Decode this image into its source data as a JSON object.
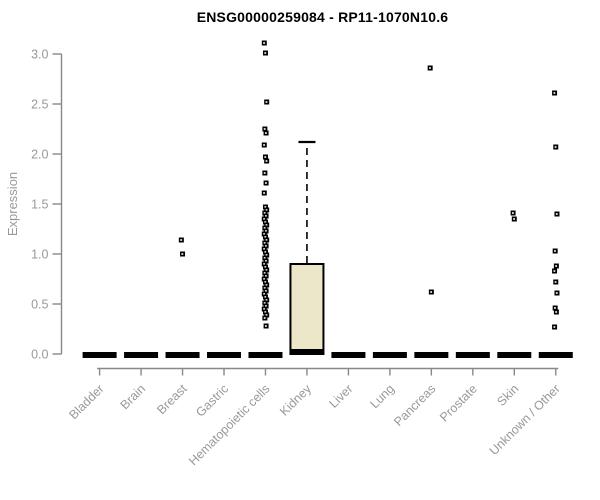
{
  "chart_data": {
    "type": "boxplot",
    "title": "ENSG00000259084 - RP11-1070N10.6",
    "ylabel": "Expression",
    "xlabel": "",
    "ylim": [
      0.0,
      3.0
    ],
    "yticks": [
      0.0,
      0.5,
      1.0,
      1.5,
      2.0,
      2.5,
      3.0
    ],
    "grid": "off",
    "legend": "none",
    "categories": [
      "Bladder",
      "Brain",
      "Breast",
      "Gastric",
      "Hematopoietic cells",
      "Kidney",
      "Liver",
      "Lung",
      "Pancreas",
      "Prostate",
      "Skin",
      "Unknown / Other"
    ],
    "colors": {
      "box_fill": "#ece7c8",
      "box_border": "#000000",
      "median": "#000000",
      "outlier": "#000000",
      "axis_line": "#888888",
      "axis_text": "#999999",
      "title_text": "#000000"
    },
    "boxes": [
      {
        "category": "Bladder",
        "q1": 0,
        "median": 0,
        "q3": 0,
        "whisker_low": 0,
        "whisker_high": 0,
        "outliers": []
      },
      {
        "category": "Brain",
        "q1": 0,
        "median": 0,
        "q3": 0,
        "whisker_low": 0,
        "whisker_high": 0,
        "outliers": []
      },
      {
        "category": "Breast",
        "q1": 0,
        "median": 0,
        "q3": 0,
        "whisker_low": 0,
        "whisker_high": 0,
        "outliers": [
          1.14,
          1.0
        ]
      },
      {
        "category": "Gastric",
        "q1": 0,
        "median": 0,
        "q3": 0,
        "whisker_low": 0,
        "whisker_high": 0,
        "outliers": []
      },
      {
        "category": "Hematopoietic cells",
        "q1": 0,
        "median": 0,
        "q3": 0,
        "whisker_low": 0,
        "whisker_high": 0,
        "outliers": [
          3.11,
          3.01,
          2.52,
          2.25,
          2.21,
          2.09,
          1.97,
          1.93,
          1.81,
          1.71,
          1.61,
          1.47,
          1.44,
          1.41,
          1.38,
          1.35,
          1.32,
          1.29,
          1.26,
          1.23,
          1.2,
          1.17,
          1.14,
          1.11,
          1.08,
          1.05,
          1.02,
          0.99,
          0.96,
          0.93,
          0.9,
          0.87,
          0.84,
          0.81,
          0.78,
          0.75,
          0.72,
          0.69,
          0.66,
          0.63,
          0.6,
          0.57,
          0.54,
          0.51,
          0.48,
          0.45,
          0.42,
          0.39,
          0.36,
          0.28
        ]
      },
      {
        "category": "Kidney",
        "q1": 0,
        "median": 0.02,
        "q3": 0.9,
        "whisker_low": 0,
        "whisker_high": 2.12,
        "outliers": []
      },
      {
        "category": "Liver",
        "q1": 0,
        "median": 0,
        "q3": 0,
        "whisker_low": 0,
        "whisker_high": 0,
        "outliers": []
      },
      {
        "category": "Lung",
        "q1": 0,
        "median": 0,
        "q3": 0,
        "whisker_low": 0,
        "whisker_high": 0,
        "outliers": []
      },
      {
        "category": "Pancreas",
        "q1": 0,
        "median": 0,
        "q3": 0,
        "whisker_low": 0,
        "whisker_high": 0,
        "outliers": [
          2.86,
          0.62
        ]
      },
      {
        "category": "Prostate",
        "q1": 0,
        "median": 0,
        "q3": 0,
        "whisker_low": 0,
        "whisker_high": 0,
        "outliers": []
      },
      {
        "category": "Skin",
        "q1": 0,
        "median": 0,
        "q3": 0,
        "whisker_low": 0,
        "whisker_high": 0,
        "outliers": [
          1.41,
          1.35
        ]
      },
      {
        "category": "Unknown / Other",
        "q1": 0,
        "median": 0,
        "q3": 0,
        "whisker_low": 0,
        "whisker_high": 0,
        "outliers": [
          2.61,
          2.07,
          1.4,
          1.03,
          0.88,
          0.83,
          0.72,
          0.61,
          0.46,
          0.42,
          0.27
        ]
      }
    ]
  }
}
